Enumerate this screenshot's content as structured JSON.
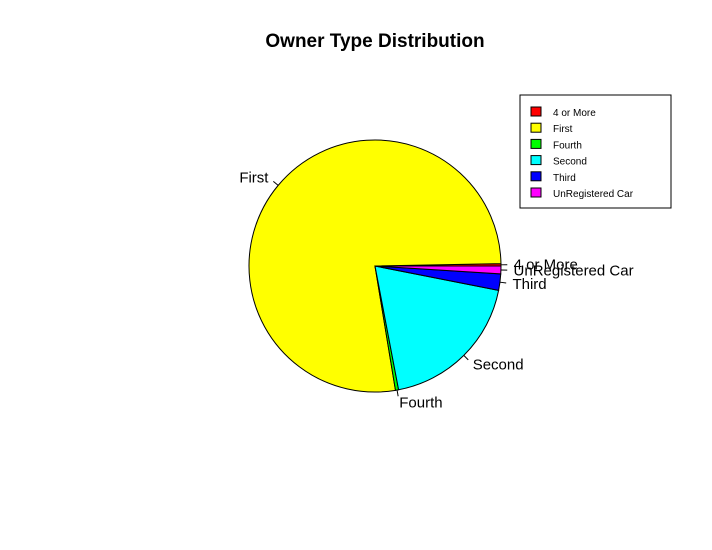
{
  "chart_data": {
    "type": "pie",
    "title": "Owner Type Distribution",
    "slices": [
      {
        "label": "4 or More",
        "value": 0.3,
        "color": "#ff0000"
      },
      {
        "label": "First",
        "value": 77.3,
        "color": "#ffff00"
      },
      {
        "label": "Fourth",
        "value": 0.4,
        "color": "#00ff00"
      },
      {
        "label": "Second",
        "value": 18.9,
        "color": "#00ffff"
      },
      {
        "label": "Third",
        "value": 2.1,
        "color": "#0000ff"
      },
      {
        "label": "UnRegistered Car",
        "value": 1.0,
        "color": "#ff00ff"
      }
    ],
    "legend": {
      "position": "top-right",
      "entries": [
        "4 or More",
        "First",
        "Fourth",
        "Second",
        "Third",
        "UnRegistered Car"
      ]
    },
    "start_angle_deg": 0,
    "direction": "counterclockwise"
  }
}
